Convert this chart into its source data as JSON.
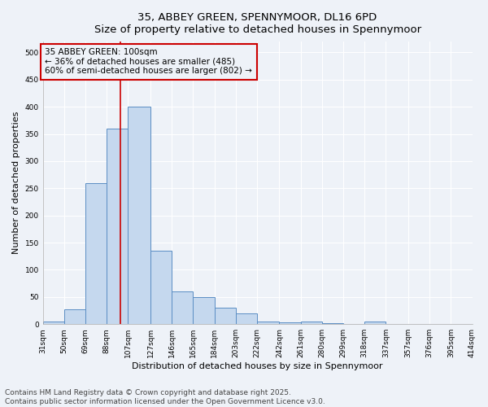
{
  "title_line1": "35, ABBEY GREEN, SPENNYMOOR, DL16 6PD",
  "title_line2": "Size of property relative to detached houses in Spennymoor",
  "xlabel": "Distribution of detached houses by size in Spennymoor",
  "ylabel": "Number of detached properties",
  "bar_color": "#c5d8ee",
  "bar_edge_color": "#5b8ec4",
  "background_color": "#eef2f8",
  "grid_color": "#ffffff",
  "annotation_box_color": "#cc0000",
  "red_line_color": "#cc0000",
  "bin_labels": [
    "31sqm",
    "50sqm",
    "69sqm",
    "88sqm",
    "107sqm",
    "127sqm",
    "146sqm",
    "165sqm",
    "184sqm",
    "203sqm",
    "222sqm",
    "242sqm",
    "261sqm",
    "280sqm",
    "299sqm",
    "318sqm",
    "337sqm",
    "357sqm",
    "376sqm",
    "395sqm",
    "414sqm"
  ],
  "bin_edges": [
    31,
    50,
    69,
    88,
    107,
    127,
    146,
    165,
    184,
    203,
    222,
    242,
    261,
    280,
    299,
    318,
    337,
    357,
    376,
    395,
    414
  ],
  "bar_heights": [
    5,
    28,
    260,
    360,
    400,
    135,
    60,
    50,
    30,
    20,
    5,
    3,
    5,
    2,
    0,
    5,
    0,
    0,
    0,
    0,
    2
  ],
  "red_line_x": 100,
  "ylim": [
    0,
    520
  ],
  "yticks": [
    0,
    50,
    100,
    150,
    200,
    250,
    300,
    350,
    400,
    450,
    500
  ],
  "annotation_text": "35 ABBEY GREEN: 100sqm\n← 36% of detached houses are smaller (485)\n60% of semi-detached houses are larger (802) →",
  "footnote1": "Contains HM Land Registry data © Crown copyright and database right 2025.",
  "footnote2": "Contains public sector information licensed under the Open Government Licence v3.0.",
  "title_fontsize": 9.5,
  "axis_label_fontsize": 8,
  "tick_fontsize": 6.5,
  "annotation_fontsize": 7.5,
  "footnote_fontsize": 6.5
}
